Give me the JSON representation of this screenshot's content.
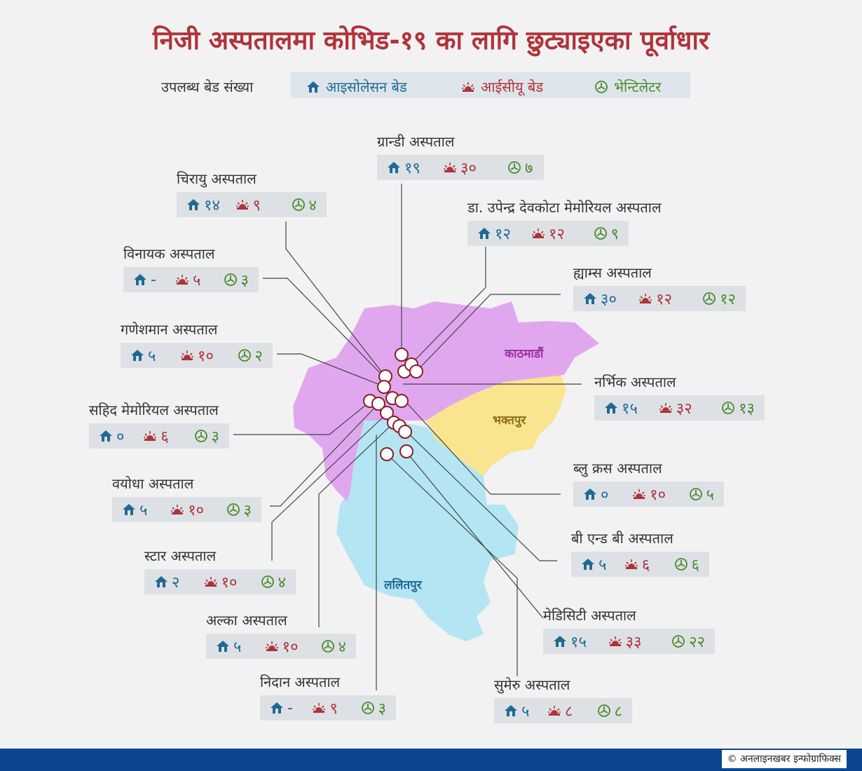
{
  "title": "निजी अस्पतालमा कोभिड-१९ का लागि छुट्याइएका पूर्वाधार",
  "legend": {
    "label": "उपलब्ध बेड संख्या",
    "isolation": "आइसोलेसन बेड",
    "icu": "आईसीयू बेड",
    "ventilator": "भेन्टिलेटर"
  },
  "colors": {
    "isolation": "#1e6a95",
    "icu": "#b0333a",
    "ventilator": "#4a8a2b",
    "kathmandu": "#e0a7ef",
    "bhaktapur": "#f9e48f",
    "lalitpur": "#b4e5f3"
  },
  "districts": {
    "kathmandu": "काठमाडौं",
    "bhaktapur": "भक्तपुर",
    "lalitpur": "ललितपुर"
  },
  "hospitals": [
    {
      "name": "ग्रान्डी अस्पताल",
      "iso": "१९",
      "icu": "३०",
      "ven": "७"
    },
    {
      "name": "चिरायु अस्पताल",
      "iso": "१४",
      "icu": "९",
      "ven": "४"
    },
    {
      "name": "डा. उपेन्द्र देवकोटा मेमोरियल अस्पताल",
      "iso": "१२",
      "icu": "१२",
      "ven": "९"
    },
    {
      "name": "विनायक अस्पताल",
      "iso": "-",
      "icu": "५",
      "ven": "३"
    },
    {
      "name": "ह्याम्स अस्पताल",
      "iso": "३०",
      "icu": "१२",
      "ven": "१२"
    },
    {
      "name": "गणेशमान अस्पताल",
      "iso": "५",
      "icu": "१०",
      "ven": "२"
    },
    {
      "name": "नर्भिक अस्पताल",
      "iso": "१५",
      "icu": "३२",
      "ven": "१३"
    },
    {
      "name": "सहिद मेमोरियल अस्पताल",
      "iso": "०",
      "icu": "६",
      "ven": "३"
    },
    {
      "name": "ब्लु क्रस अस्पताल",
      "iso": "०",
      "icu": "१०",
      "ven": "५"
    },
    {
      "name": "वयोधा अस्पताल",
      "iso": "५",
      "icu": "१०",
      "ven": "३"
    },
    {
      "name": "बी एन्ड बी अस्पताल",
      "iso": "५",
      "icu": "६",
      "ven": "६"
    },
    {
      "name": "स्टार अस्पताल",
      "iso": "२",
      "icu": "१०",
      "ven": "४"
    },
    {
      "name": "मेडिसिटी अस्पताल",
      "iso": "१५",
      "icu": "३३",
      "ven": "२२"
    },
    {
      "name": "अल्का अस्पताल",
      "iso": "५",
      "icu": "१०",
      "ven": "४"
    },
    {
      "name": "निदान अस्पताल",
      "iso": "-",
      "icu": "९",
      "ven": "३"
    },
    {
      "name": "सुमेरु अस्पताल",
      "iso": "५",
      "icu": "८",
      "ven": "८"
    }
  ],
  "credit": "© अनलाइनखबर इन्फोग्राफिक्स"
}
